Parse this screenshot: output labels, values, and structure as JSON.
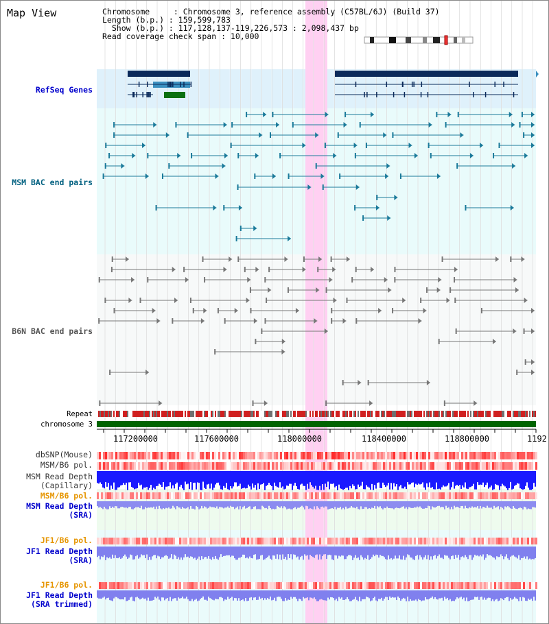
{
  "view_title": "Map View",
  "header": {
    "line1": "Chromosome     : Chromosome 3, reference assembly (C57BL/6J) (Build 37)",
    "line2": "Length (b.p.) : 159,599,783",
    "line3": "  Show (b.p.) : 117,128,137-119,226,573 : 2,098,437 bp",
    "line4": "Read coverage check span : 10,000"
  },
  "tracks": {
    "refseq": "RefSeq Genes",
    "msm_bac": "MSM BAC end pairs",
    "b6n_bac": "B6N BAC end pairs",
    "repeat": "Repeat",
    "chromosome": "chromosome 3",
    "dbsnp": "dbSNP(Mouse)",
    "msm_b6_pol_1": "MSM/B6 pol.",
    "msm_depth_cap_1": "MSM Read Depth",
    "msm_depth_cap_2": "(Capillary)",
    "msm_b6_pol_2": "MSM/B6 pol.",
    "msm_depth_sra_1": "MSM Read Depth",
    "msm_depth_sra_2": "(SRA)",
    "jf1_b6_pol_1": "JF1/B6 pol.",
    "jf1_depth_sra_1": "JF1 Read Depth",
    "jf1_depth_sra_2": "(SRA)",
    "jf1_b6_pol_2": "JF1/B6 pol.",
    "jf1_depth_trim_1": "JF1 Read Depth",
    "jf1_depth_trim_2": "(SRA trimmed)"
  },
  "axis_ticks": [
    "117200000",
    "117600000",
    "118000000",
    "118400000",
    "118800000",
    "1192"
  ],
  "colors": {
    "refseq_label": "#0000cc",
    "msm_label": "#006080",
    "b6n_label": "#555555",
    "pol_label_orange": "#e69500",
    "depth_label_blue": "#0000cc",
    "highlight": "#ffccf0",
    "chromosome_bar": "#006400"
  }
}
